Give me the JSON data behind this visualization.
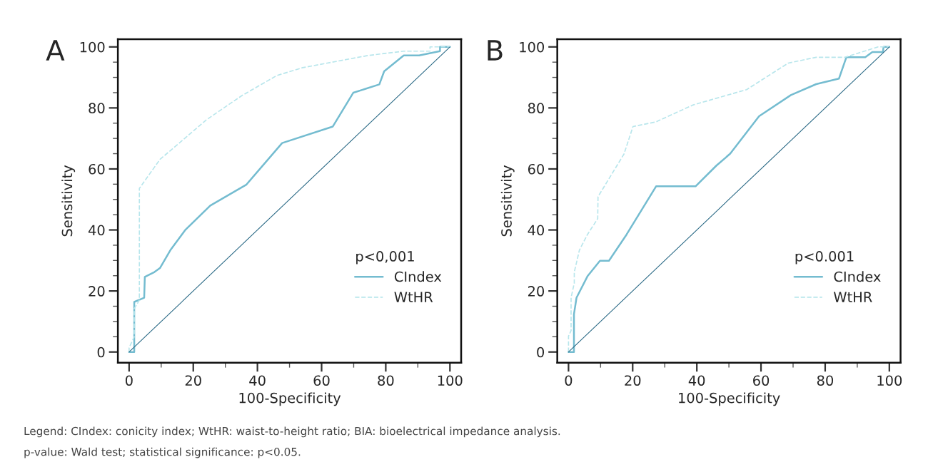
{
  "chart_data": [
    {
      "type": "line",
      "title": "A",
      "xlabel": "100-Specificity",
      "ylabel": "Sensitivity",
      "legend_title": "p<0,001",
      "legend": "bottom right",
      "grid": false,
      "xlim": [
        -3.5,
        103.5
      ],
      "ylim": [
        -3.5,
        102.5
      ],
      "xticks": [
        0,
        {
          "value": 10,
          "label": null
        },
        20,
        {
          "value": 30,
          "label": null
        },
        40,
        {
          "value": 50,
          "label": null
        },
        60,
        {
          "value": 70,
          "label": null
        },
        80,
        {
          "value": 90,
          "label": null
        },
        100
      ],
      "yticks": [
        0,
        {
          "value": 5,
          "label": null
        },
        {
          "value": 10,
          "label": null
        },
        {
          "value": 15,
          "label": null
        },
        20,
        {
          "value": 25,
          "label": null
        },
        {
          "value": 30,
          "label": null
        },
        {
          "value": 35,
          "label": null
        },
        40,
        {
          "value": 45,
          "label": null
        },
        {
          "value": 50,
          "label": null
        },
        {
          "value": 55,
          "label": null
        },
        60,
        {
          "value": 65,
          "label": null
        },
        {
          "value": 70,
          "label": null
        },
        {
          "value": 75,
          "label": null
        },
        80,
        {
          "value": 85,
          "label": null
        },
        {
          "value": 90,
          "label": null
        },
        {
          "value": 95,
          "label": null
        },
        100
      ],
      "series": [
        {
          "name": "CIndex",
          "color": "#74bcd0",
          "line_style": "solid",
          "x": [
            0,
            1.6,
            1.6,
            4.7,
            4.9,
            7.9,
            9.6,
            13,
            17.6,
            25.3,
            36.5,
            47.7,
            63.5,
            69.9,
            78,
            79.5,
            85.6,
            90.4,
            96.9,
            96.9,
            100
          ],
          "values": [
            0,
            0,
            16.4,
            17.8,
            24.6,
            26.2,
            27.5,
            33.6,
            40.1,
            48,
            54.8,
            68.5,
            73.9,
            85,
            87.7,
            92,
            97.2,
            97.2,
            98.6,
            100,
            100
          ]
        },
        {
          "name": "WtHR",
          "color": "#b8e6ec",
          "line_style": "dashed",
          "x": [
            0,
            0,
            1.6,
            1.6,
            3.2,
            3.2,
            9.6,
            24.1,
            35.1,
            46,
            54.1,
            74.6,
            85.6,
            93.8,
            93.8,
            100
          ],
          "values": [
            0,
            1.4,
            5,
            14.2,
            17,
            53.6,
            63.1,
            76.1,
            84,
            90.6,
            93.2,
            97.2,
            98.6,
            98.6,
            100,
            100
          ]
        },
        {
          "color": "#2b6a86",
          "line_style": "solid",
          "x": [
            0,
            100
          ],
          "values": [
            0,
            100
          ]
        }
      ],
      "annotations": [
        "Legend: CIndex: conicity index; WtHR: waist-to-height ratio; BIA: bioelectrical impedance analysis.",
        "p-value: Wald test; statistical significance: p<0.05."
      ]
    },
    {
      "type": "line",
      "title": "B",
      "xlabel": "100-Specificity",
      "ylabel": "Sensitivity",
      "legend_title": "p<0.001",
      "legend": "bottom right",
      "grid": false,
      "xlim": [
        -3.5,
        103.5
      ],
      "ylim": [
        -3.5,
        102.5
      ],
      "xticks": [
        0,
        {
          "value": 10,
          "label": null
        },
        20,
        {
          "value": 30,
          "label": null
        },
        40,
        {
          "value": 50,
          "label": null
        },
        60,
        {
          "value": 70,
          "label": null
        },
        80,
        {
          "value": 90,
          "label": null
        },
        100
      ],
      "yticks": [
        0,
        {
          "value": 5,
          "label": null
        },
        {
          "value": 10,
          "label": null
        },
        {
          "value": 15,
          "label": null
        },
        20,
        {
          "value": 25,
          "label": null
        },
        {
          "value": 30,
          "label": null
        },
        {
          "value": 35,
          "label": null
        },
        40,
        {
          "value": 45,
          "label": null
        },
        {
          "value": 50,
          "label": null
        },
        {
          "value": 55,
          "label": null
        },
        60,
        {
          "value": 65,
          "label": null
        },
        {
          "value": 70,
          "label": null
        },
        {
          "value": 75,
          "label": null
        },
        80,
        {
          "value": 85,
          "label": null
        },
        {
          "value": 90,
          "label": null
        },
        {
          "value": 95,
          "label": null
        },
        100
      ],
      "series": [
        {
          "name": "CIndex",
          "color": "#74bcd0",
          "line_style": "solid",
          "x": [
            0,
            1.7,
            1.7,
            2.5,
            5.9,
            9.8,
            12.6,
            18.1,
            27.3,
            39.6,
            46.1,
            50.4,
            59.4,
            69.3,
            77.2,
            84.3,
            86.6,
            92.5,
            94.7,
            98,
            98.2,
            100
          ],
          "values": [
            0,
            0,
            12.4,
            17.8,
            24.8,
            29.9,
            29.9,
            38.5,
            54.3,
            54.3,
            61.1,
            65,
            77.3,
            84.2,
            87.8,
            89.6,
            96.6,
            96.6,
            98.3,
            98.3,
            100,
            100
          ]
        },
        {
          "name": "WtHR",
          "color": "#b8e6ec",
          "line_style": "dashed",
          "x": [
            0,
            0,
            0.8,
            0.8,
            1.8,
            1.8,
            3.4,
            5.9,
            9.1,
            9.2,
            17.3,
            20.1,
            27.2,
            38.9,
            55.5,
            68.5,
            77.2,
            86.2,
            96.5,
            100
          ],
          "values": [
            0,
            5.2,
            7,
            17.8,
            22.6,
            26.2,
            33.4,
            38.5,
            43.7,
            50.9,
            64.9,
            73.9,
            75.4,
            81,
            86,
            94.7,
            96.6,
            96.6,
            100,
            100
          ]
        },
        {
          "color": "#2b6a86",
          "line_style": "solid",
          "x": [
            0,
            100
          ],
          "values": [
            0,
            100
          ]
        }
      ]
    }
  ]
}
